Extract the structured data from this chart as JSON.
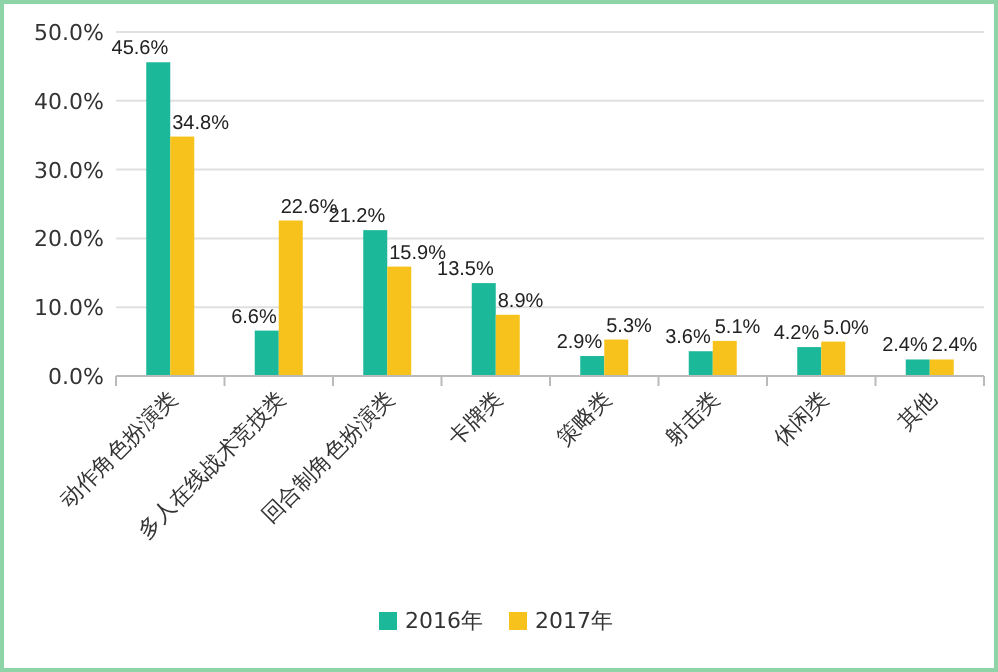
{
  "chart_data": {
    "type": "bar",
    "categories": [
      "动作角色扮演类",
      "多人在线战术竞技类",
      "回合制角色扮演类",
      "卡牌类",
      "策略类",
      "射击类",
      "休闲类",
      "其他"
    ],
    "series": [
      {
        "name": "2016年",
        "color": "#1bb899",
        "values": [
          45.6,
          6.6,
          21.2,
          13.5,
          2.9,
          3.6,
          4.2,
          2.4
        ],
        "value_labels": [
          "45.6%",
          "6.6%",
          "21.2%",
          "13.5%",
          "2.9%",
          "3.6%",
          "4.2%",
          "2.4%"
        ]
      },
      {
        "name": "2017年",
        "color": "#f7c21b",
        "values": [
          34.8,
          22.6,
          15.9,
          8.9,
          5.3,
          5.1,
          5.0,
          2.4
        ],
        "value_labels": [
          "34.8%",
          "22.6%",
          "15.9%",
          "8.9%",
          "5.3%",
          "5.1%",
          "5.0%",
          "2.4%"
        ]
      }
    ],
    "ylim": [
      0,
      50
    ],
    "yticks": [
      {
        "value": 0,
        "label": "0.0%"
      },
      {
        "value": 10,
        "label": "10.0%"
      },
      {
        "value": 20,
        "label": "20.0%"
      },
      {
        "value": 30,
        "label": "30.0%"
      },
      {
        "value": 40,
        "label": "40.0%"
      },
      {
        "value": 50,
        "label": "50.0%"
      }
    ],
    "grid": "y",
    "legend": "bottom"
  }
}
